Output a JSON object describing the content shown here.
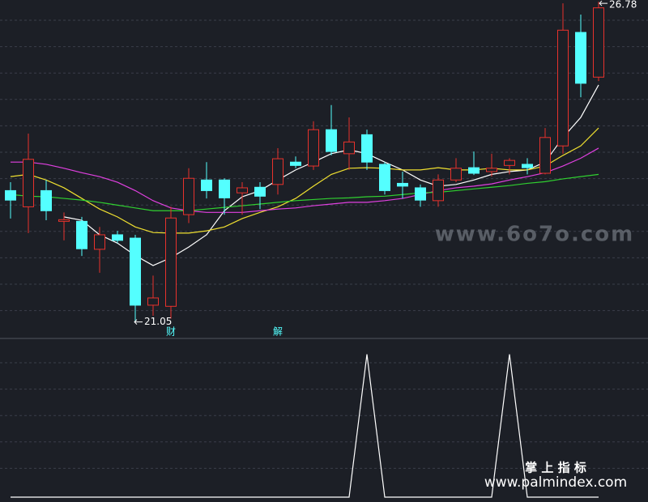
{
  "chart_data": [
    {
      "type": "candlestick",
      "categories": [
        null,
        null,
        null,
        null,
        null,
        null,
        null,
        null,
        null,
        "财",
        null,
        null,
        null,
        null,
        null,
        "解",
        null,
        null,
        null,
        null,
        null,
        null,
        null,
        null,
        null,
        null,
        null,
        null,
        null,
        null,
        null,
        null,
        null,
        null
      ],
      "open": [
        23.4,
        23.11,
        23.4,
        22.85,
        22.85,
        22.35,
        22.61,
        22.55,
        21.35,
        21.33,
        22.97,
        23.59,
        23.59,
        23.36,
        23.46,
        23.51,
        23.91,
        23.84,
        24.49,
        24.06,
        24.4,
        23.87,
        23.53,
        23.45,
        23.22,
        23.59,
        23.81,
        23.74,
        23.85,
        23.87,
        23.71,
        24.2,
        26.23,
        25.43
      ],
      "high": [
        23.55,
        24.42,
        23.59,
        23.01,
        22.93,
        22.75,
        22.68,
        22.61,
        21.88,
        23.11,
        23.8,
        23.91,
        23.62,
        23.55,
        23.55,
        24.16,
        24.01,
        24.64,
        24.93,
        24.71,
        24.49,
        23.91,
        23.74,
        23.51,
        23.69,
        23.98,
        24.1,
        24.06,
        23.98,
        23.98,
        24.52,
        26.75,
        26.55,
        26.78
      ],
      "low": [
        22.9,
        22.64,
        22.87,
        22.51,
        22.23,
        21.93,
        22.46,
        21.05,
        21.16,
        21.11,
        22.82,
        23.26,
        22.97,
        22.97,
        23.07,
        23.33,
        23.8,
        23.77,
        24.03,
        23.77,
        23.77,
        23.33,
        23.26,
        23.11,
        23.11,
        23.55,
        23.68,
        23.65,
        23.69,
        23.69,
        23.69,
        24.06,
        25.07,
        25.36
      ],
      "close": [
        23.23,
        23.96,
        23.04,
        22.88,
        22.36,
        22.61,
        22.51,
        21.35,
        21.48,
        22.91,
        23.62,
        23.4,
        23.27,
        23.45,
        23.3,
        23.97,
        23.85,
        24.49,
        24.1,
        24.27,
        23.91,
        23.4,
        23.48,
        23.23,
        23.59,
        23.8,
        23.71,
        23.8,
        23.94,
        23.81,
        24.35,
        26.27,
        25.32,
        26.67
      ],
      "up_color": "#e8322c",
      "down_color": "#54ffff",
      "series": [
        {
          "color": "#ffffff",
          "values": [
            null,
            null,
            null,
            22.93,
            22.87,
            22.61,
            22.46,
            22.24,
            22.06,
            22.2,
            22.39,
            22.61,
            23.04,
            23.29,
            23.4,
            23.59,
            23.77,
            23.91,
            24.06,
            24.13,
            24.06,
            23.91,
            23.77,
            23.59,
            23.48,
            23.51,
            23.59,
            23.69,
            23.74,
            23.77,
            23.91,
            24.35,
            24.71,
            25.29
          ]
        },
        {
          "color": "#f0e030",
          "values": [
            23.65,
            23.69,
            23.59,
            23.45,
            23.26,
            23.07,
            22.93,
            22.75,
            22.65,
            22.64,
            22.64,
            22.68,
            22.75,
            22.9,
            23.01,
            23.11,
            23.26,
            23.48,
            23.69,
            23.8,
            23.81,
            23.8,
            23.77,
            23.77,
            23.81,
            23.77,
            23.77,
            23.8,
            23.77,
            23.77,
            23.84,
            24.03,
            24.2,
            24.52
          ]
        },
        {
          "color": "#e040e0",
          "values": [
            23.91,
            23.91,
            23.87,
            23.8,
            23.72,
            23.65,
            23.55,
            23.4,
            23.22,
            23.09,
            23.04,
            23.01,
            23.01,
            23.01,
            23.04,
            23.07,
            23.09,
            23.13,
            23.16,
            23.19,
            23.19,
            23.22,
            23.26,
            23.33,
            23.4,
            23.45,
            23.48,
            23.52,
            23.59,
            23.65,
            23.72,
            23.84,
            23.98,
            24.16
          ]
        },
        {
          "color": "#30d030",
          "values": [
            23.33,
            23.3,
            23.29,
            23.26,
            23.23,
            23.19,
            23.14,
            23.09,
            23.04,
            23.04,
            23.04,
            23.07,
            23.1,
            23.13,
            23.16,
            23.19,
            23.22,
            23.24,
            23.26,
            23.27,
            23.29,
            23.3,
            23.33,
            23.36,
            23.37,
            23.4,
            23.43,
            23.46,
            23.49,
            23.53,
            23.56,
            23.61,
            23.65,
            23.69
          ]
        }
      ],
      "ylim": [
        20.9,
        26.81
      ],
      "grid": true
    },
    {
      "type": "line",
      "color": "#ffffff",
      "values": [
        0,
        0,
        0,
        0,
        0,
        0,
        0,
        0,
        0,
        0,
        0,
        0,
        0,
        0,
        0,
        0,
        0,
        0,
        0,
        0,
        1,
        0,
        0,
        0,
        0,
        0,
        0,
        0,
        1,
        0,
        0,
        0,
        0,
        0
      ],
      "ylim": [
        0,
        1.1
      ],
      "grid": true
    }
  ],
  "watermarks": {
    "site": "www.6o7o.com",
    "brand": "掌 上 指 标",
    "site2": "www.palmindex.com"
  }
}
